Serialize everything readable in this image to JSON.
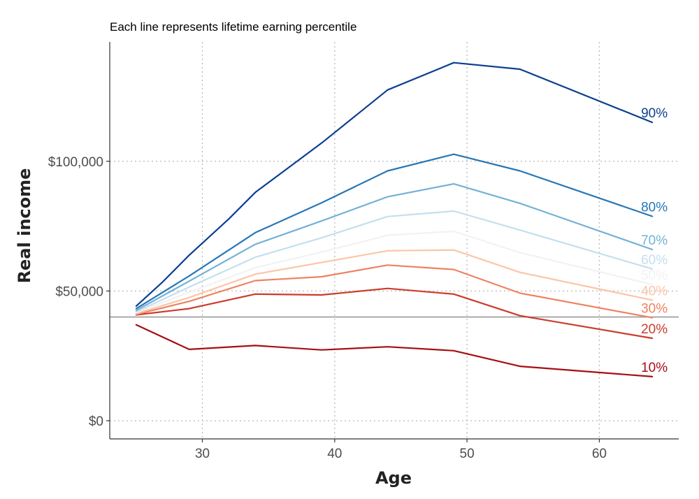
{
  "chart_data": {
    "type": "line",
    "title": "",
    "subtitle": "Each line represents lifetime earning percentile",
    "xlabel": "Age",
    "ylabel": "Real income",
    "xlim": [
      23,
      66
    ],
    "ylim": [
      -7000,
      146000
    ],
    "x_ticks": [
      30,
      40,
      50,
      60
    ],
    "y_ticks": [
      0,
      50000,
      100000
    ],
    "y_tick_labels": [
      "$0",
      "$50,000",
      "$100,000"
    ],
    "x_tick_labels": [
      "30",
      "40",
      "50",
      "60"
    ],
    "grid": true,
    "legend": "none",
    "reference_line": {
      "y": 40000,
      "color": "#999999"
    },
    "series": [
      {
        "name": "10%",
        "color": "#a50f15",
        "x": [
          25,
          29,
          34,
          39,
          44,
          49,
          54,
          64
        ],
        "values": [
          37000,
          27500,
          29000,
          27300,
          28500,
          27000,
          21000,
          17000
        ]
      },
      {
        "name": "20%",
        "color": "#cb3b2c",
        "x": [
          25,
          29,
          34,
          39,
          44,
          49,
          54,
          64
        ],
        "values": [
          40800,
          43200,
          48800,
          48500,
          51000,
          48800,
          40500,
          31800
        ]
      },
      {
        "name": "30%",
        "color": "#ee8262",
        "x": [
          25,
          29,
          34,
          39,
          44,
          49,
          54,
          64
        ],
        "values": [
          41000,
          46000,
          54000,
          55500,
          60000,
          58300,
          49200,
          39700
        ]
      },
      {
        "name": "40%",
        "color": "#fbc5a8",
        "x": [
          25,
          29,
          34,
          39,
          44,
          49,
          54,
          64
        ],
        "values": [
          41300,
          47500,
          56500,
          61000,
          65500,
          65800,
          57200,
          46500
        ]
      },
      {
        "name": "50%",
        "color": "#f2f2f2",
        "x": [
          25,
          29,
          34,
          39,
          44,
          49,
          54,
          64
        ],
        "values": [
          41700,
          49500,
          59000,
          65000,
          71500,
          73000,
          64800,
          52500
        ]
      },
      {
        "name": "60%",
        "color": "#c4dfee",
        "x": [
          25,
          29,
          34,
          39,
          44,
          49,
          54,
          64
        ],
        "values": [
          42000,
          51500,
          63000,
          70500,
          78700,
          80800,
          73500,
          58500
        ]
      },
      {
        "name": "70%",
        "color": "#74b1d6",
        "x": [
          25,
          29,
          34,
          39,
          44,
          49,
          54,
          64
        ],
        "values": [
          42500,
          53800,
          68000,
          77000,
          86300,
          91300,
          83800,
          66000
        ]
      },
      {
        "name": "80%",
        "color": "#2777b6",
        "x": [
          25,
          29,
          34,
          39,
          44,
          49,
          54,
          64
        ],
        "values": [
          43200,
          55800,
          72500,
          84000,
          96300,
          102700,
          96300,
          78800
        ]
      },
      {
        "name": "90%",
        "color": "#0b3f8f",
        "x": [
          25,
          27,
          29,
          32,
          34,
          39,
          44,
          49,
          54,
          64
        ],
        "values": [
          44200,
          53500,
          63800,
          77800,
          88000,
          107000,
          127500,
          138000,
          135500,
          115000
        ]
      }
    ]
  }
}
